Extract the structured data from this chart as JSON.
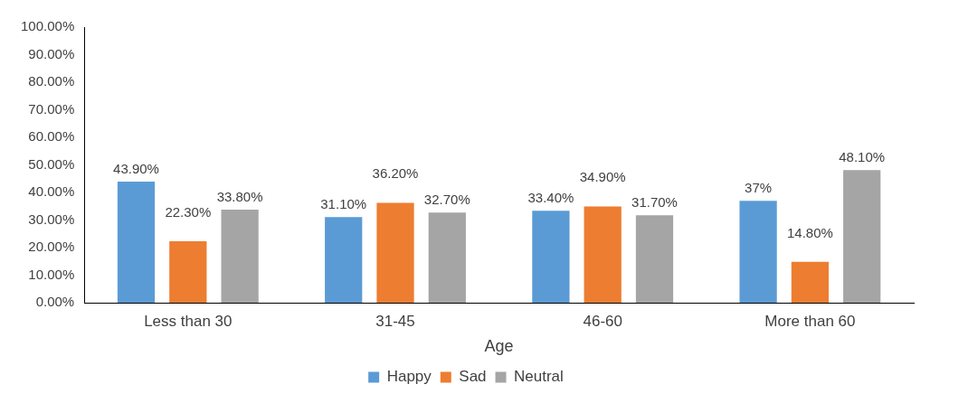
{
  "chart_data": {
    "type": "bar",
    "xlabel": "Age",
    "categories": [
      "Less than 30",
      "31-45",
      "46-60",
      "More than 60"
    ],
    "series": [
      {
        "name": "Happy",
        "color": "#5b9bd5",
        "values": [
          43.9,
          31.1,
          33.4,
          37
        ],
        "value_labels": [
          "43.90%",
          "31.10%",
          "33.40%",
          "37%"
        ]
      },
      {
        "name": "Sad",
        "color": "#ed7d31",
        "values": [
          22.3,
          36.2,
          34.9,
          14.8
        ],
        "value_labels": [
          "22.30%",
          "36.20%",
          "34.90%",
          "14.80%"
        ]
      },
      {
        "name": "Neutral",
        "color": "#a5a5a5",
        "values": [
          33.8,
          32.7,
          31.7,
          48.1
        ],
        "value_labels": [
          "33.80%",
          "32.70%",
          "31.70%",
          "48.10%"
        ]
      }
    ],
    "ylim": [
      0,
      100
    ],
    "yticks": [
      {
        "value": 0,
        "label": "0.00%"
      },
      {
        "value": 10,
        "label": "10.00%"
      },
      {
        "value": 20,
        "label": "20.00%"
      },
      {
        "value": 30,
        "label": "30.00%"
      },
      {
        "value": 40,
        "label": "40.00%"
      },
      {
        "value": 50,
        "label": "50.00%"
      },
      {
        "value": 60,
        "label": "60.00%"
      },
      {
        "value": 70,
        "label": "70.00%"
      },
      {
        "value": 80,
        "label": "80.00%"
      },
      {
        "value": 90,
        "label": "90.00%"
      },
      {
        "value": 100,
        "label": "100.00%"
      }
    ],
    "grid": false,
    "legend": "bottom"
  }
}
